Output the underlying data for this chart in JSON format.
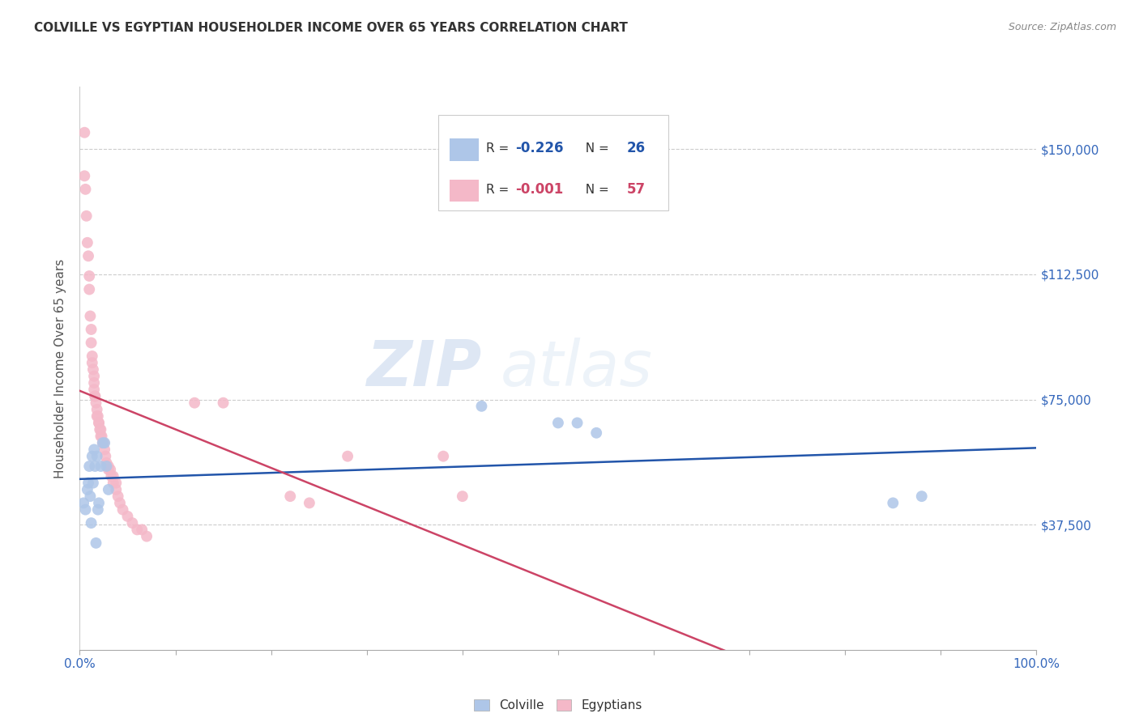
{
  "title": "COLVILLE VS EGYPTIAN HOUSEHOLDER INCOME OVER 65 YEARS CORRELATION CHART",
  "source": "Source: ZipAtlas.com",
  "ylabel": "Householder Income Over 65 years",
  "xlim": [
    0,
    1.0
  ],
  "ylim": [
    0,
    168750
  ],
  "yticks": [
    0,
    37500,
    75000,
    112500,
    150000
  ],
  "ytick_labels": [
    "",
    "$37,500",
    "$75,000",
    "$112,500",
    "$150,000"
  ],
  "colville_R": "-0.226",
  "colville_N": "26",
  "egyptian_R": "-0.001",
  "egyptian_N": "57",
  "colville_color": "#aec6e8",
  "egyptian_color": "#f4b8c8",
  "colville_line_color": "#2255aa",
  "egyptian_line_color": "#cc4466",
  "background_color": "#ffffff",
  "grid_color": "#cccccc",
  "watermark_zip": "ZIP",
  "watermark_atlas": "atlas",
  "colville_x": [
    0.004,
    0.006,
    0.008,
    0.009,
    0.01,
    0.011,
    0.012,
    0.013,
    0.014,
    0.015,
    0.016,
    0.017,
    0.018,
    0.019,
    0.02,
    0.022,
    0.024,
    0.026,
    0.028,
    0.03,
    0.42,
    0.5,
    0.52,
    0.54,
    0.85,
    0.88
  ],
  "colville_y": [
    44000,
    42000,
    48000,
    50000,
    55000,
    46000,
    38000,
    58000,
    50000,
    60000,
    55000,
    32000,
    58000,
    42000,
    44000,
    55000,
    62000,
    62000,
    55000,
    48000,
    73000,
    68000,
    68000,
    65000,
    44000,
    46000
  ],
  "egyptian_x": [
    0.005,
    0.005,
    0.006,
    0.007,
    0.008,
    0.009,
    0.01,
    0.01,
    0.011,
    0.012,
    0.012,
    0.013,
    0.013,
    0.014,
    0.015,
    0.015,
    0.015,
    0.016,
    0.016,
    0.017,
    0.018,
    0.018,
    0.019,
    0.02,
    0.02,
    0.021,
    0.022,
    0.022,
    0.023,
    0.024,
    0.025,
    0.026,
    0.027,
    0.028,
    0.03,
    0.03,
    0.032,
    0.033,
    0.035,
    0.035,
    0.038,
    0.038,
    0.04,
    0.042,
    0.045,
    0.05,
    0.055,
    0.06,
    0.065,
    0.07,
    0.12,
    0.15,
    0.22,
    0.24,
    0.28,
    0.38,
    0.4
  ],
  "egyptian_y": [
    155000,
    142000,
    138000,
    130000,
    122000,
    118000,
    112000,
    108000,
    100000,
    96000,
    92000,
    88000,
    86000,
    84000,
    82000,
    80000,
    78000,
    76000,
    76000,
    74000,
    72000,
    70000,
    70000,
    68000,
    68000,
    66000,
    66000,
    64000,
    64000,
    62000,
    62000,
    60000,
    58000,
    56000,
    55000,
    54000,
    54000,
    52000,
    52000,
    50000,
    50000,
    48000,
    46000,
    44000,
    42000,
    40000,
    38000,
    36000,
    36000,
    34000,
    74000,
    74000,
    46000,
    44000,
    58000,
    58000,
    46000
  ]
}
